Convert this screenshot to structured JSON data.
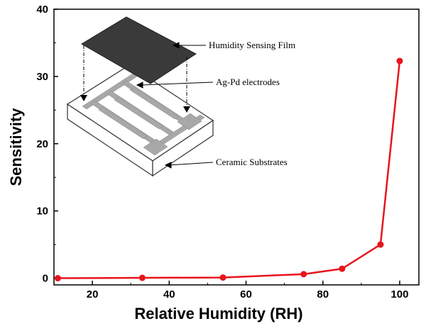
{
  "chart_data": {
    "type": "line",
    "xlabel": "Relative Humidity (RH)",
    "ylabel": "Sensitivity",
    "xlim": [
      10,
      105
    ],
    "ylim": [
      -1,
      40
    ],
    "xticks": [
      20,
      40,
      60,
      80,
      100
    ],
    "yticks": [
      0,
      10,
      20,
      30,
      40
    ],
    "grid": false,
    "series": [
      {
        "color": "#e8141b",
        "marker": "circle",
        "points": [
          {
            "x": 11,
            "y": 0.0
          },
          {
            "x": 33,
            "y": 0.05
          },
          {
            "x": 54,
            "y": 0.1
          },
          {
            "x": 75,
            "y": 0.6
          },
          {
            "x": 85,
            "y": 1.4
          },
          {
            "x": 95,
            "y": 5.0
          },
          {
            "x": 100,
            "y": 32.3
          }
        ]
      }
    ],
    "inset": {
      "labels": {
        "film": "Humidity Sensing Film",
        "electrodes": "Ag-Pd electrodes",
        "substrate": "Ceramic Substrates"
      },
      "colors": {
        "film": "#3a3a3a",
        "electrodes": "#a8a8a8",
        "substrate": "#ffffff"
      }
    }
  }
}
